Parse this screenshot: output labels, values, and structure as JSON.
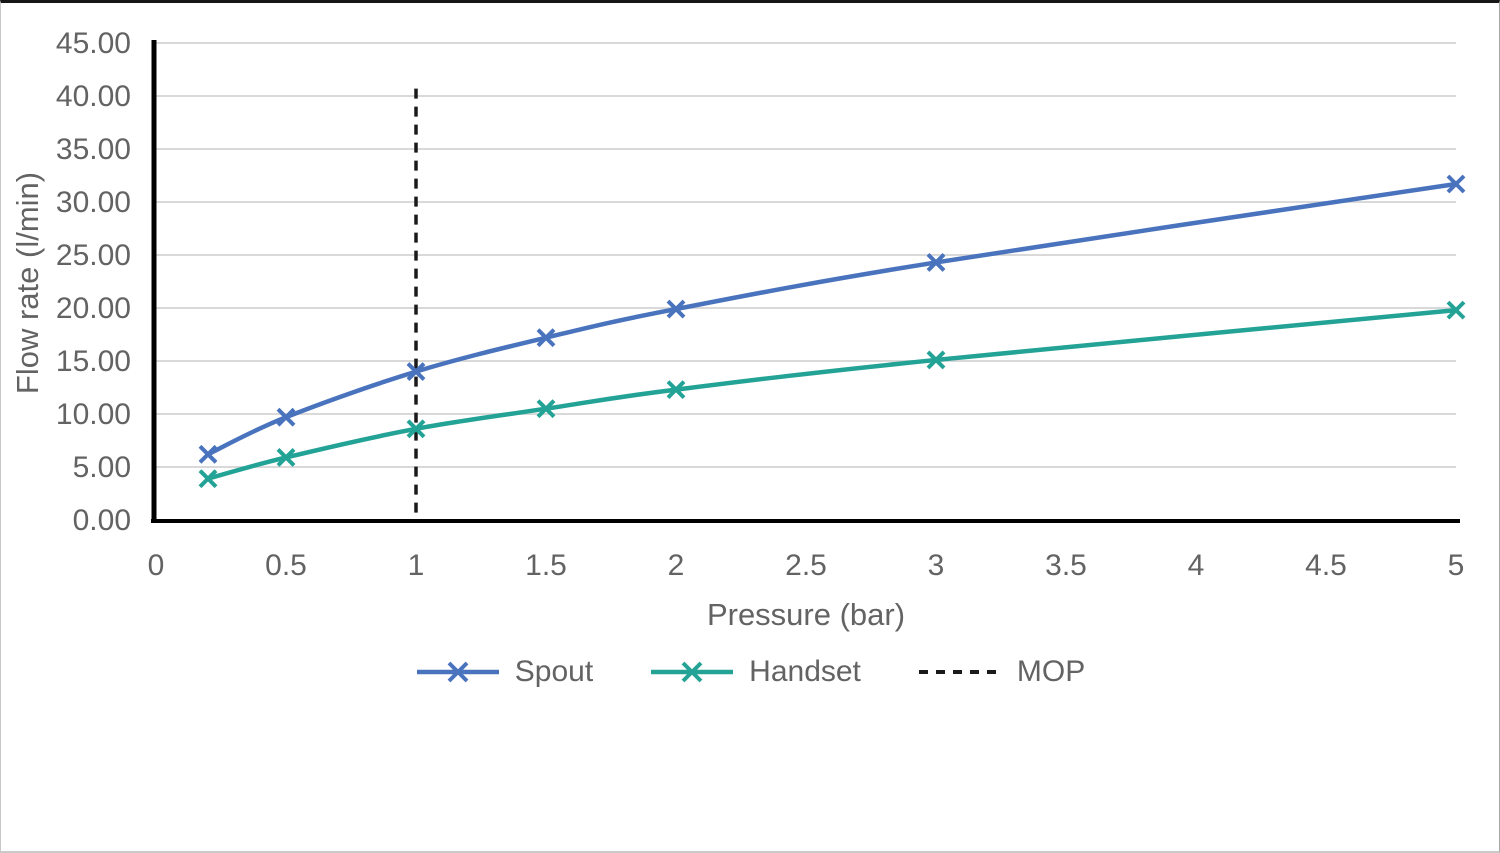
{
  "chart_data": {
    "type": "line",
    "title": "",
    "xlabel": "Pressure (bar)",
    "ylabel": "Flow rate (l/min)",
    "x": [
      0.2,
      0.5,
      1,
      1.5,
      2,
      3,
      5
    ],
    "series": [
      {
        "name": "Spout",
        "color": "#4A73BE",
        "marker": "x",
        "values": [
          6.2,
          9.7,
          14.0,
          17.2,
          19.9,
          24.3,
          31.7
        ]
      },
      {
        "name": "Handset",
        "color": "#23A296",
        "marker": "x",
        "values": [
          3.9,
          5.9,
          8.6,
          10.5,
          12.3,
          15.1,
          19.8
        ]
      }
    ],
    "reference_line": {
      "name": "MOP",
      "axis": "x",
      "value": 1,
      "top_value": 40.7,
      "color": "#1A1A1A",
      "style": "dashed"
    },
    "xlim": [
      0,
      5
    ],
    "ylim": [
      0,
      45
    ],
    "xticks": [
      "0",
      "0.5",
      "1",
      "1.5",
      "2",
      "2.5",
      "3",
      "3.5",
      "4",
      "4.5",
      "5"
    ],
    "yticks": [
      "0.00",
      "5.00",
      "10.00",
      "15.00",
      "20.00",
      "25.00",
      "30.00",
      "35.00",
      "40.00",
      "45.00"
    ],
    "grid": true,
    "smooth_lines": true,
    "legend_position": "bottom",
    "legend": {
      "items": [
        {
          "label": "Spout",
          "swatch": "line-x-marker"
        },
        {
          "label": "Handset",
          "swatch": "line-x-marker"
        },
        {
          "label": "MOP",
          "swatch": "dashed-line"
        }
      ]
    },
    "colors": {
      "grid": "#D9D9D9",
      "axis": "#000000",
      "text": "#636363"
    }
  }
}
